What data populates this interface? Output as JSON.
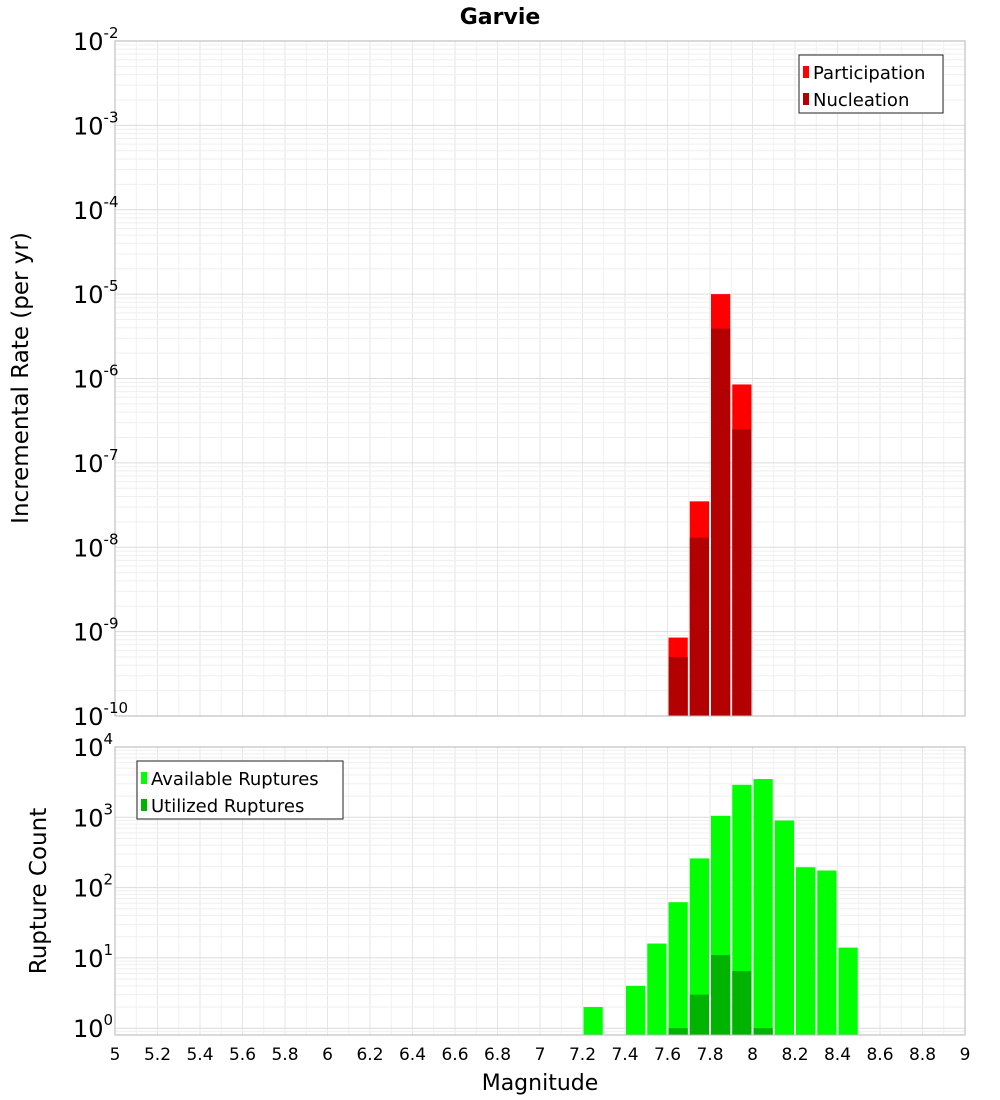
{
  "chart_data": [
    {
      "type": "bar",
      "title": "Garvie",
      "ylabel": "Incremental Rate (per yr)",
      "xlabel": "",
      "yscale": "log",
      "ylim": [
        1e-10,
        0.01
      ],
      "xlim": [
        5,
        9
      ],
      "grid": true,
      "legend": "top-right",
      "bin_width": 0.1,
      "series": [
        {
          "name": "Participation",
          "color": "#ff0000",
          "x": [
            7.65,
            7.75,
            7.85,
            7.95
          ],
          "values": [
            8.5e-10,
            3.5e-08,
            1e-05,
            8.5e-07
          ]
        },
        {
          "name": "Nucleation",
          "color": "#b30000",
          "x": [
            7.65,
            7.75,
            7.85,
            7.95
          ],
          "values": [
            5e-10,
            1.3e-08,
            3.9e-06,
            2.5e-07
          ]
        }
      ]
    },
    {
      "type": "bar",
      "title": "",
      "ylabel": "Rupture Count",
      "xlabel": "Magnitude",
      "yscale": "log",
      "ylim": [
        0.8,
        10000
      ],
      "xlim": [
        5,
        9
      ],
      "grid": true,
      "legend": "top-left",
      "bin_width": 0.1,
      "x_ticks": [
        "5",
        "5.2",
        "5.4",
        "5.6",
        "5.8",
        "6",
        "6.2",
        "6.4",
        "6.6",
        "6.8",
        "7",
        "7.2",
        "7.4",
        "7.6",
        "7.8",
        "8",
        "8.2",
        "8.4",
        "8.6",
        "8.8",
        "9"
      ],
      "series": [
        {
          "name": "Available Ruptures",
          "color": "#00ff00",
          "x": [
            7.25,
            7.45,
            7.55,
            7.65,
            7.75,
            7.85,
            7.95,
            8.05,
            8.15,
            8.25,
            8.35,
            8.45
          ],
          "values": [
            2,
            4,
            16,
            62,
            260,
            1050,
            2900,
            3500,
            900,
            195,
            175,
            14
          ]
        },
        {
          "name": "Utilized Ruptures",
          "color": "#00b300",
          "x": [
            7.65,
            7.75,
            7.85,
            7.95,
            8.05
          ],
          "values": [
            1,
            3,
            11,
            6.5,
            1
          ]
        }
      ]
    }
  ]
}
